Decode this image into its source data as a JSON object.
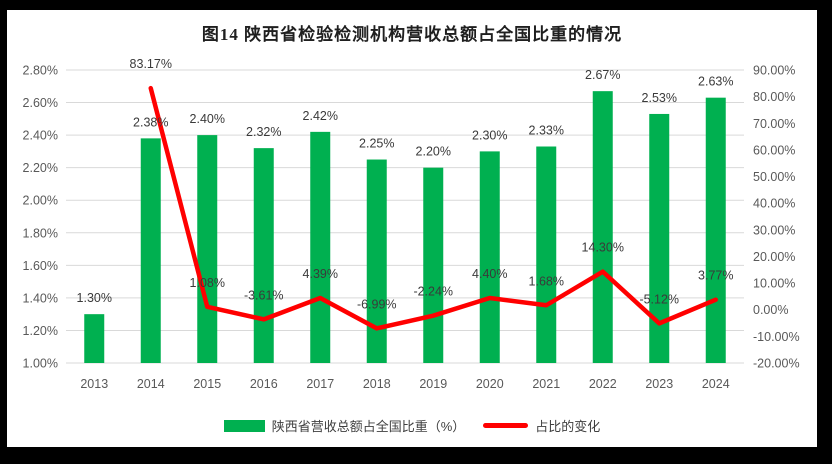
{
  "frame": {
    "background": "#000000",
    "panel_background": "#ffffff"
  },
  "colors": {
    "bar_green": "#00B050",
    "line_red": "#FF0000",
    "gridline": "#D9D9D9",
    "axis_text": "#595959",
    "data_label": "#3a3a3a",
    "title_text": "#1f1f1f"
  },
  "chart_data": {
    "type": "combo-bar-line",
    "title": "图14  陕西省检验检测机构营收总额占全国比重的情况",
    "categories": [
      "2013",
      "2014",
      "2015",
      "2016",
      "2017",
      "2018",
      "2019",
      "2020",
      "2021",
      "2022",
      "2023",
      "2024"
    ],
    "series": [
      {
        "name": "陕西省营收总额占全国比重（%）",
        "type": "bar",
        "axis": "left",
        "color": "#00B050",
        "values": [
          1.3,
          2.38,
          2.4,
          2.32,
          2.42,
          2.25,
          2.2,
          2.3,
          2.33,
          2.67,
          2.53,
          2.63
        ],
        "labels": [
          "1.30%",
          "2.38%",
          "2.40%",
          "2.32%",
          "2.42%",
          "2.25%",
          "2.20%",
          "2.30%",
          "2.33%",
          "2.67%",
          "2.53%",
          "2.63%"
        ]
      },
      {
        "name": "占比的变化",
        "type": "line",
        "axis": "right",
        "color": "#FF0000",
        "values": [
          null,
          83.17,
          1.08,
          -3.61,
          4.39,
          -6.99,
          -2.24,
          4.4,
          1.68,
          14.3,
          -5.12,
          3.77
        ],
        "labels": [
          null,
          "83.17%",
          "1.08%",
          "-3.61%",
          "4.39%",
          "-6.99%",
          "-2.24%",
          "4.40%",
          "1.68%",
          "14.30%",
          "-5.12%",
          "3.77%"
        ]
      }
    ],
    "left_axis": {
      "min": 1.0,
      "max": 2.8,
      "step": 0.2,
      "ticks": [
        "2.80%",
        "2.60%",
        "2.40%",
        "2.20%",
        "2.00%",
        "1.80%",
        "1.60%",
        "1.40%",
        "1.20%",
        "1.00%"
      ]
    },
    "right_axis": {
      "min": -20,
      "max": 90,
      "step": 10,
      "ticks": [
        "90.00%",
        "80.00%",
        "70.00%",
        "60.00%",
        "50.00%",
        "40.00%",
        "30.00%",
        "20.00%",
        "10.00%",
        "0.00%",
        "-10.00%",
        "-20.00%"
      ]
    },
    "grid": true,
    "legend_position": "bottom"
  }
}
